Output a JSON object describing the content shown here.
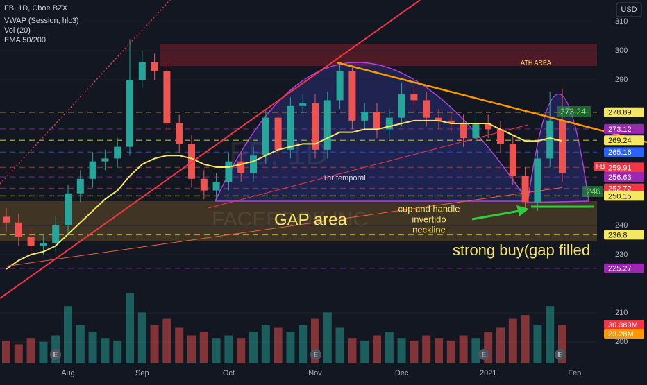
{
  "header": {
    "symbol": "FB, 1D, Cboe BZX",
    "indicators": [
      "VWAP (Session, hlc3)",
      "Vol (20)",
      "EMA 50/200"
    ],
    "currency": "USD",
    "watermark": "FACEBOOK INC",
    "watermark_symbol": "FB, 1D"
  },
  "chart_data": {
    "type": "candlestick",
    "categories": [
      null,
      null,
      null,
      null,
      null,
      "Aug",
      null,
      null,
      null,
      null,
      null,
      "Sep",
      null,
      null,
      null,
      null,
      null,
      null,
      "Oct",
      null,
      null,
      null,
      null,
      null,
      null,
      "Nov",
      null,
      null,
      null,
      null,
      null,
      null,
      "Dec",
      null,
      null,
      null,
      null,
      null,
      null,
      "2021",
      null,
      null,
      null,
      null,
      null,
      null,
      "Feb"
    ],
    "open": [
      243,
      241,
      236,
      233,
      234,
      240,
      251,
      256,
      262,
      263,
      267,
      290,
      296,
      293,
      275,
      268,
      256,
      252,
      255,
      262,
      258,
      264,
      277,
      266,
      281,
      282,
      266,
      283,
      293,
      276,
      279,
      273,
      277,
      285,
      283,
      277,
      276,
      275,
      270,
      275,
      273,
      268,
      257,
      248,
      263,
      276,
      null
    ],
    "high": [
      246,
      244,
      239,
      237,
      243,
      254,
      259,
      265,
      266,
      270,
      304,
      300,
      299,
      296,
      278,
      271,
      259,
      258,
      265,
      265,
      267,
      280,
      280,
      284,
      285,
      285,
      286,
      296,
      295,
      282,
      282,
      280,
      289,
      288,
      286,
      280,
      279,
      278,
      278,
      278,
      276,
      271,
      260,
      266,
      286,
      287,
      null
    ],
    "low": [
      238,
      233,
      230,
      230,
      231,
      237,
      248,
      253,
      259,
      260,
      264,
      287,
      290,
      272,
      265,
      253,
      249,
      249,
      252,
      255,
      255,
      261,
      263,
      263,
      278,
      263,
      263,
      280,
      273,
      273,
      270,
      270,
      274,
      280,
      274,
      273,
      272,
      267,
      267,
      270,
      265,
      254,
      245,
      245,
      260,
      255,
      null
    ],
    "close": [
      241,
      236,
      233,
      234,
      240,
      251,
      256,
      262,
      263,
      267,
      290,
      296,
      293,
      275,
      268,
      256,
      252,
      255,
      262,
      258,
      264,
      277,
      266,
      281,
      282,
      266,
      283,
      293,
      276,
      279,
      273,
      277,
      285,
      283,
      277,
      276,
      275,
      270,
      275,
      273,
      268,
      257,
      248,
      263,
      276,
      258,
      null
    ],
    "up_color": "#26a69a",
    "down_color": "#ef5350",
    "lines": [
      {
        "color": "#f5e663",
        "values": [
          225,
          228,
          230,
          231,
          233,
          237,
          241,
          245,
          249,
          252,
          257,
          261,
          263,
          264,
          264,
          263,
          261,
          260,
          260,
          261,
          262,
          264,
          266,
          267,
          268,
          268,
          270,
          272,
          272,
          273,
          273,
          274,
          275,
          276,
          276,
          276,
          275,
          275,
          275,
          275,
          273,
          271,
          269,
          269,
          270,
          269,
          null
        ]
      },
      {
        "color": "#e8603c",
        "values": [
          226,
          226.6,
          227.2,
          227.8,
          228.4,
          229,
          229.6,
          230.2,
          230.8,
          231.4,
          232,
          232.6,
          233.2,
          233.8,
          234.4,
          235,
          235.6,
          236.2,
          236.8,
          237.4,
          238,
          238.6,
          239.2,
          239.8,
          240.4,
          241,
          241.6,
          242.2,
          242.8,
          243.4,
          244,
          244.6,
          245.2,
          245.8,
          246.4,
          247,
          247.6,
          248.2,
          248.8,
          249.4,
          250,
          250.6,
          251.2,
          251.8,
          252.4,
          253,
          null
        ]
      }
    ],
    "ylim": [
      192.6,
      317.4
    ],
    "yticks": [
      200,
      210,
      230,
      240,
      290,
      300,
      310
    ],
    "volume": [
      18,
      15,
      20,
      17,
      22,
      45,
      30,
      25,
      20,
      18,
      55,
      40,
      30,
      35,
      28,
      22,
      25,
      20,
      22,
      20,
      25,
      30,
      28,
      25,
      30,
      35,
      40,
      28,
      20,
      18,
      22,
      25,
      20,
      18,
      22,
      20,
      18,
      22,
      20,
      25,
      28,
      35,
      38,
      30,
      45,
      30.389,
      null
    ],
    "volume_labels": [
      {
        "value": 30.389,
        "label": "30.389M"
      },
      {
        "value": 23.28,
        "label": "23.28M"
      }
    ],
    "volume_label_colors": [
      "#f23645",
      "#ff9800"
    ],
    "price_labels": [
      278.89,
      273.12,
      269.24,
      265.16,
      259.91,
      256.63,
      252.72,
      250.15,
      236.8,
      225.27
    ],
    "price_label_colors": [
      "#f5e663",
      "#9c27b0",
      "#f5e663",
      "#2962ff",
      "#f23645",
      "#9c27b0",
      "#f23645",
      "#f5e663",
      "#f5e663",
      "#9c27b0"
    ],
    "symbol_tag": "FB",
    "earnings_markers": [
      "E",
      "E",
      "E",
      "E"
    ],
    "annotations": {
      "ath": "ATH AREA",
      "target": "273.24",
      "support": "246.1",
      "temporal": "1hr temporal",
      "gap": "GAP area",
      "cup": [
        "cup and handle",
        "invertido",
        "neckline"
      ],
      "buy": "strong buy(gap filled"
    }
  }
}
